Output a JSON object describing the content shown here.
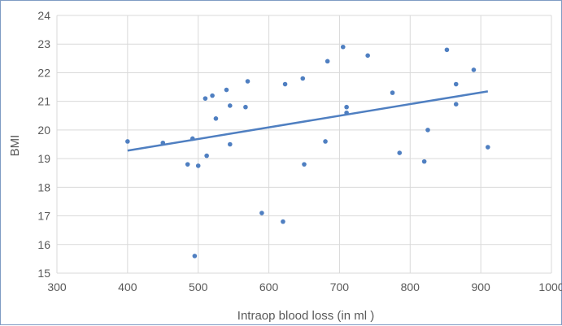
{
  "chart_data": {
    "type": "scatter",
    "title": "",
    "xlabel": "Intraop blood loss (in ml )",
    "ylabel": "BMI",
    "xlim": [
      300,
      1000
    ],
    "ylim": [
      15,
      24
    ],
    "x_ticks": [
      300,
      400,
      500,
      600,
      700,
      800,
      900,
      1000
    ],
    "y_ticks": [
      15,
      16,
      17,
      18,
      19,
      20,
      21,
      22,
      23,
      24
    ],
    "grid": "vertical-and-horizontal",
    "legend": "none",
    "colors": {
      "points": "#4f7fc1",
      "trendline": "#4f7fc1",
      "grid": "#d9d9d9"
    },
    "series": [
      {
        "points": [
          [
            400,
            19.6
          ],
          [
            450,
            19.55
          ],
          [
            485,
            18.8
          ],
          [
            492,
            19.7
          ],
          [
            495,
            15.6
          ],
          [
            500,
            18.75
          ],
          [
            510,
            21.1
          ],
          [
            512,
            19.1
          ],
          [
            520,
            21.2
          ],
          [
            525,
            20.4
          ],
          [
            540,
            21.4
          ],
          [
            545,
            20.85
          ],
          [
            545,
            19.5
          ],
          [
            567,
            20.8
          ],
          [
            570,
            21.7
          ],
          [
            590,
            17.1
          ],
          [
            620,
            16.8
          ],
          [
            623,
            21.6
          ],
          [
            648,
            21.8
          ],
          [
            650,
            18.8
          ],
          [
            680,
            19.6
          ],
          [
            683,
            22.4
          ],
          [
            705,
            22.9
          ],
          [
            710,
            20.8
          ],
          [
            710,
            20.6
          ],
          [
            740,
            22.6
          ],
          [
            775,
            21.3
          ],
          [
            785,
            19.2
          ],
          [
            820,
            18.9
          ],
          [
            825,
            20.0
          ],
          [
            852,
            22.8
          ],
          [
            865,
            21.6
          ],
          [
            865,
            20.9
          ],
          [
            890,
            22.1
          ],
          [
            910,
            19.4
          ]
        ]
      }
    ],
    "trendline": {
      "type": "linear",
      "from": [
        400,
        19.28
      ],
      "to": [
        910,
        21.35
      ]
    }
  }
}
